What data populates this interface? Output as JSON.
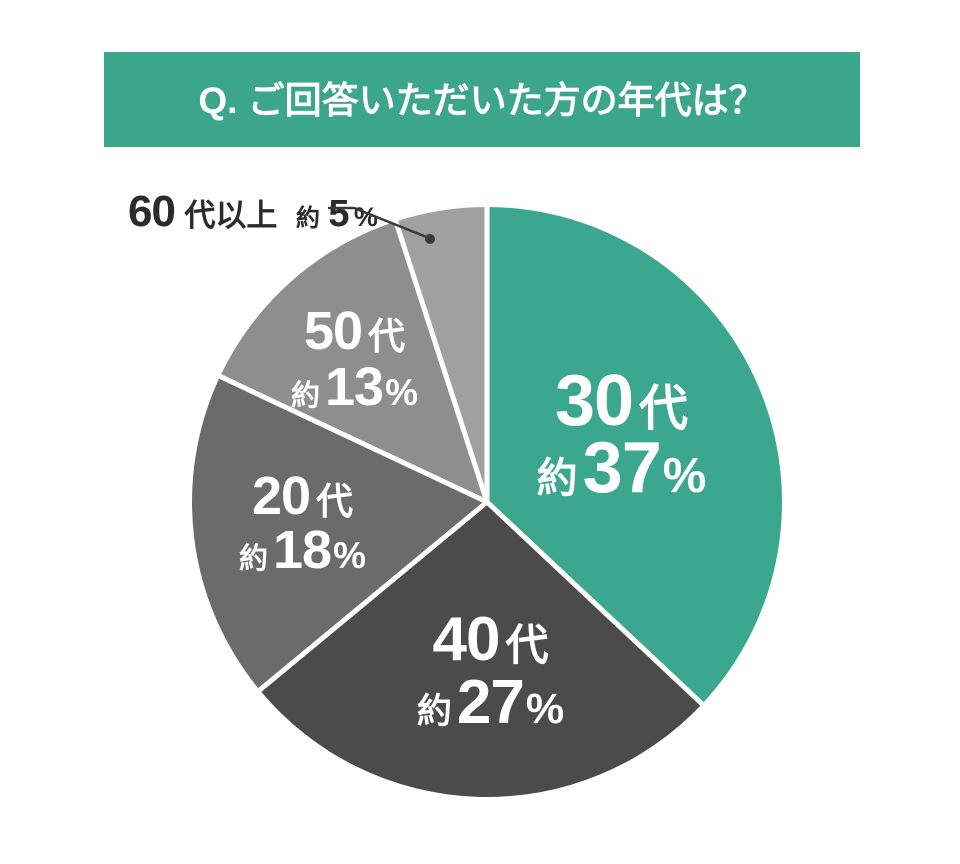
{
  "title": "Q. ご回答いただいた方の年代は？",
  "banner": {
    "color": "#3BA68C",
    "text_color": "#FFFFFF"
  },
  "background_color": "#FFFFFF",
  "separator_color": "#FFFFFF",
  "callout_line_color": "#3A3A3A",
  "chart_data": {
    "type": "pie",
    "title": "Q. ご回答いただいた方の年代は？",
    "direction": "clockwise",
    "start_angle_deg": 0,
    "legend_position": "labels-on-slices",
    "approx_prefix": "約",
    "slices": [
      {
        "name": "slice-30s",
        "label": "30代",
        "label_num": "30",
        "label_unit": "代",
        "approx": "約",
        "percent": 37,
        "percent_text": "37",
        "percent_unit": "%",
        "color": "#3BA78E",
        "label_color": "#FFFFFF"
      },
      {
        "name": "slice-40s",
        "label": "40代",
        "label_num": "40",
        "label_unit": "代",
        "approx": "約",
        "percent": 27,
        "percent_text": "27",
        "percent_unit": "%",
        "color": "#4B4B4B",
        "label_color": "#FFFFFF"
      },
      {
        "name": "slice-20s",
        "label": "20代",
        "label_num": "20",
        "label_unit": "代",
        "approx": "約",
        "percent": 18,
        "percent_text": "18",
        "percent_unit": "%",
        "color": "#6B6B6B",
        "label_color": "#FFFFFF"
      },
      {
        "name": "slice-50s",
        "label": "50代",
        "label_num": "50",
        "label_unit": "代",
        "approx": "約",
        "percent": 13,
        "percent_text": "13",
        "percent_unit": "%",
        "color": "#8E8E8E",
        "label_color": "#FFFFFF"
      },
      {
        "name": "slice-60s-plus",
        "label": "60代以上",
        "label_num": "60",
        "label_unit": "代以上",
        "approx": "約",
        "percent": 5,
        "percent_text": "5",
        "percent_unit": "%",
        "color": "#A0A0A0",
        "label_color": "#2B2B2B",
        "callout": true
      }
    ]
  }
}
